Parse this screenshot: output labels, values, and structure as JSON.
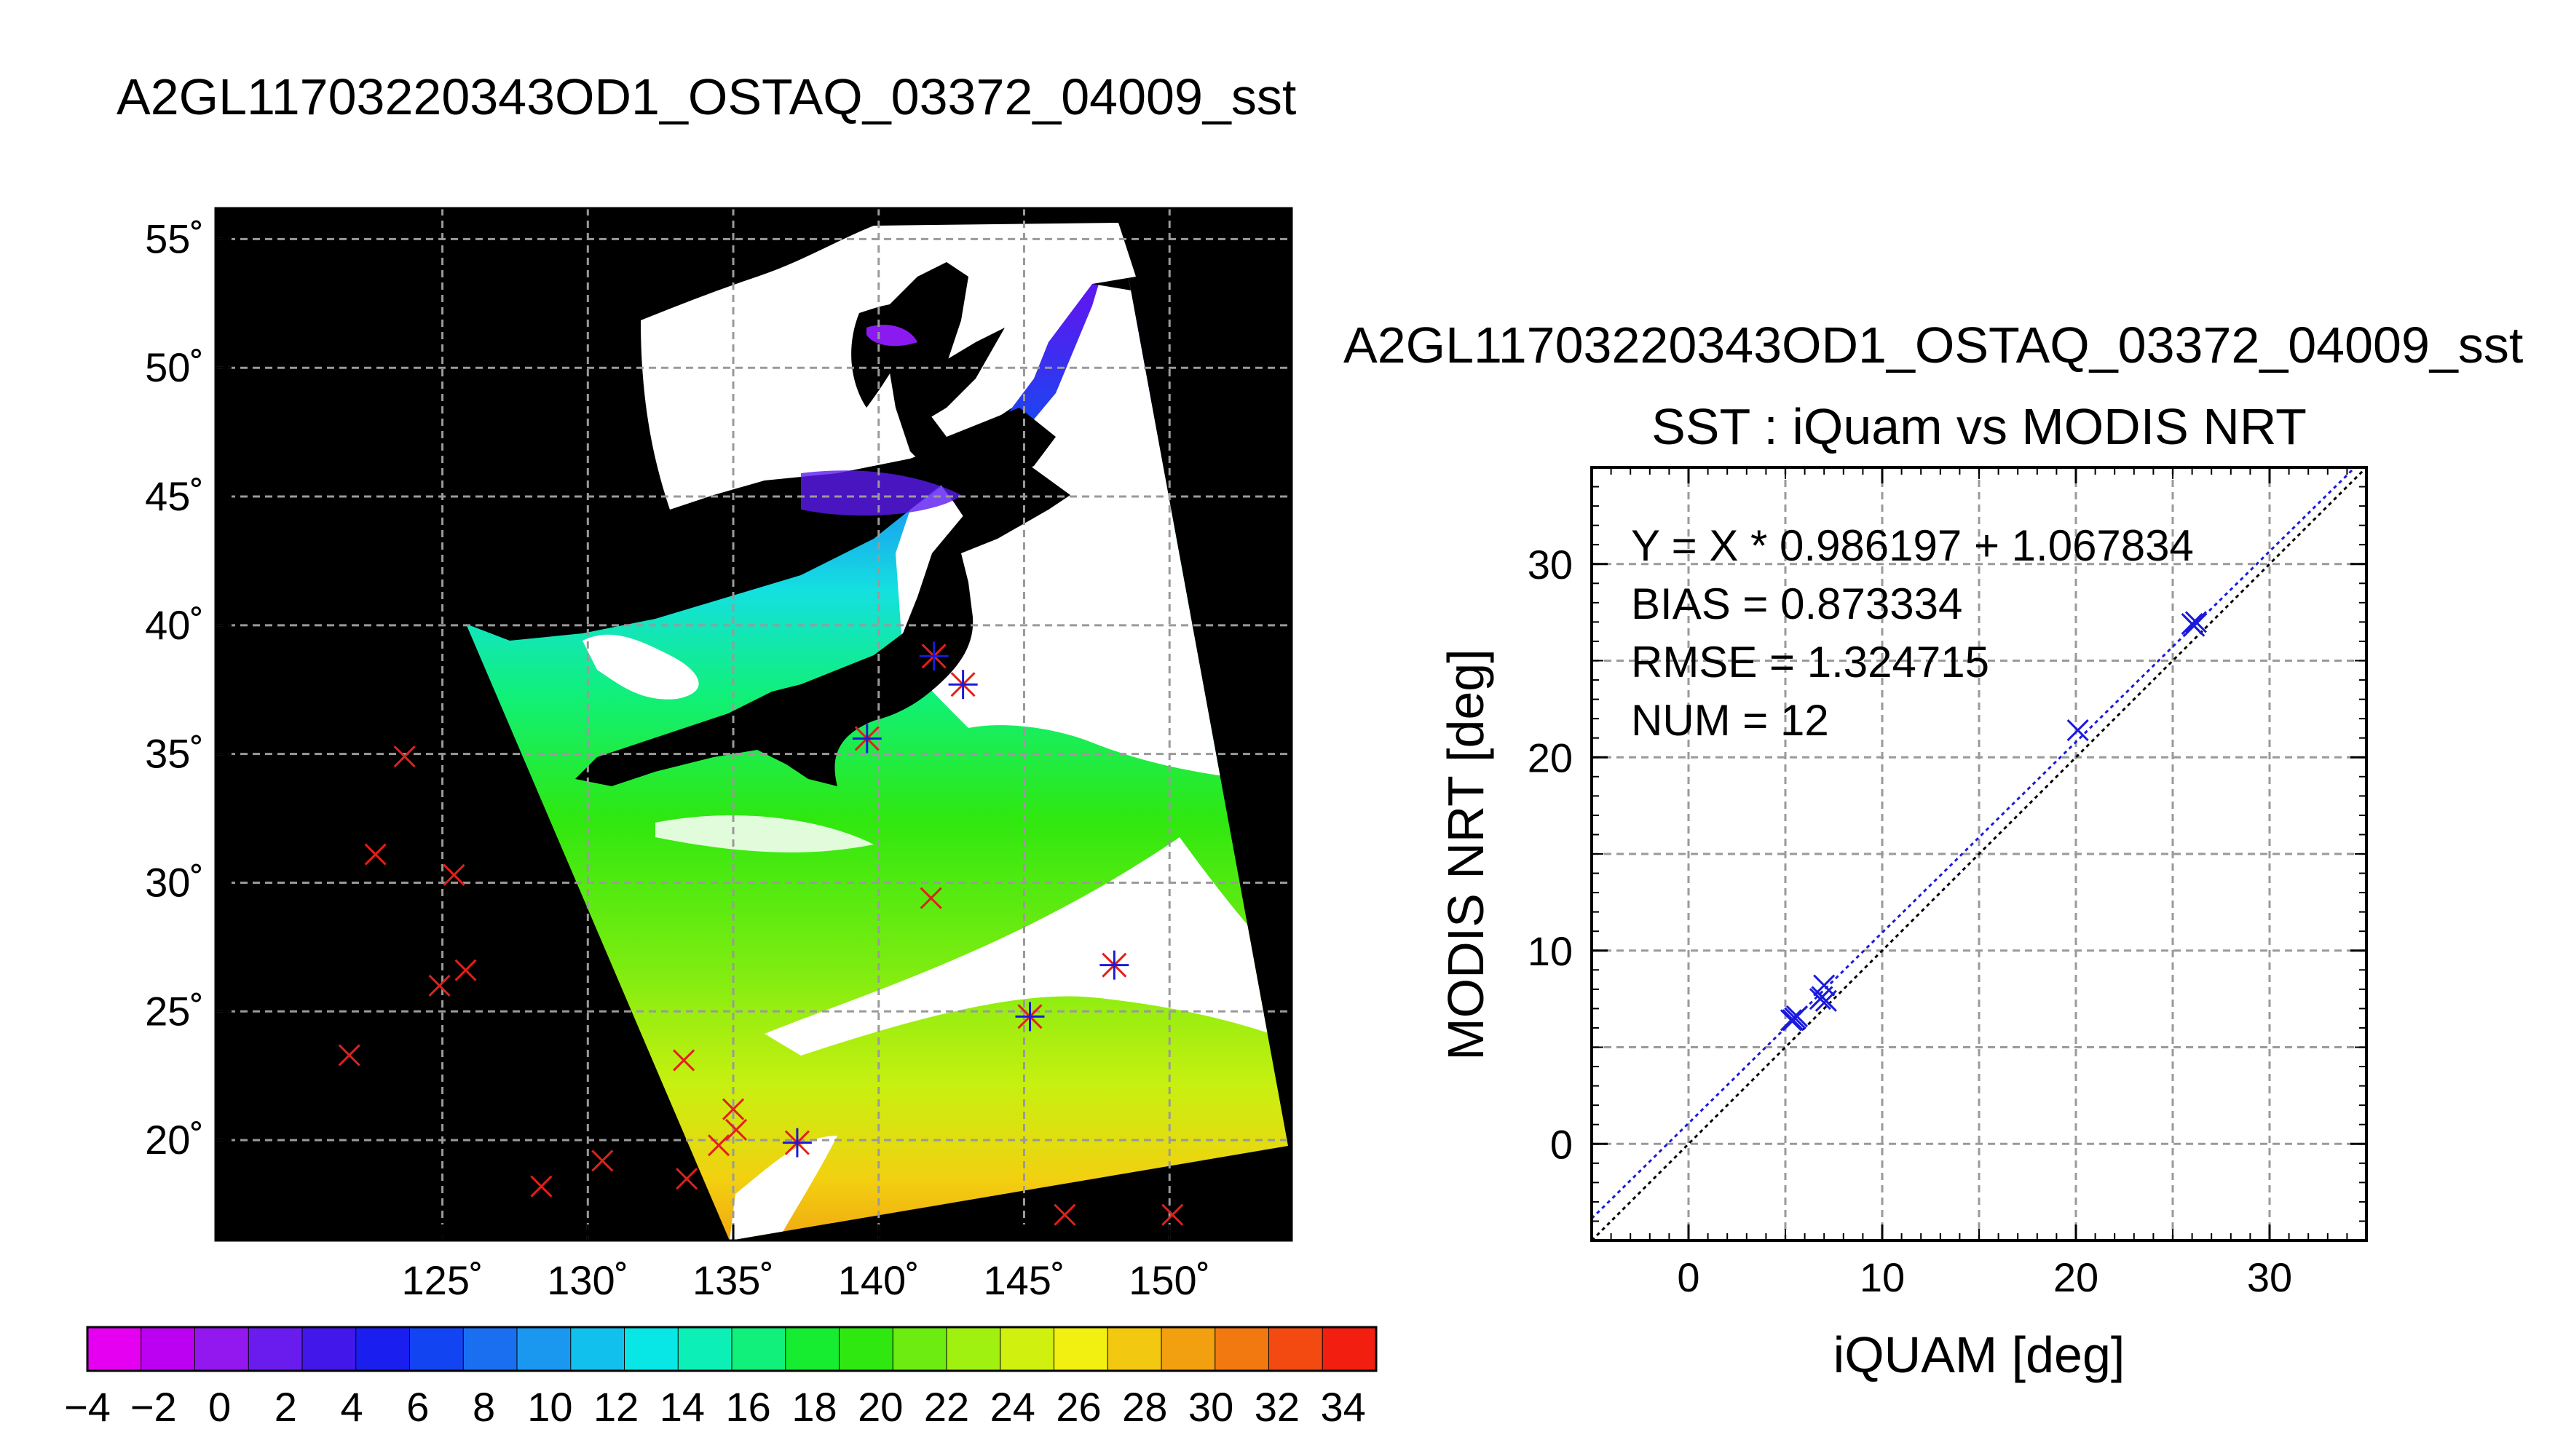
{
  "figure": {
    "map_title": "A2GL11703220343OD1_OSTAQ_03372_04009_sst",
    "scatter_title": "A2GL11703220343OD1_OSTAQ_03372_04009_sst",
    "scatter_subtitle": "SST : iQuam vs MODIS NRT"
  },
  "colors": {
    "marker_red": "#e0201a",
    "marker_blue": "#1a1adc",
    "fit_line": "#1a1adc",
    "map_background": "#000000",
    "cloud": "#ffffff"
  },
  "chart_data": [
    {
      "type": "scatter",
      "kind": "map",
      "title": "A2GL11703220343OD1_OSTAQ_03372_04009_sst",
      "lon_ticks": [
        125,
        130,
        135,
        140,
        145,
        150
      ],
      "lat_ticks": [
        55,
        50,
        45,
        40,
        35,
        30,
        25,
        20
      ],
      "lon_tick_labels": [
        "125˚",
        "130˚",
        "135˚",
        "140˚",
        "145˚",
        "150˚"
      ],
      "lat_tick_labels": [
        "55˚",
        "50˚",
        "45˚",
        "40˚",
        "35˚",
        "30˚",
        "25˚",
        "20˚"
      ],
      "xlim": [
        117.2,
        154.2
      ],
      "ylim": [
        16.1,
        56.2
      ],
      "grid": true,
      "stations_outside_swath": [
        {
          "lon": 123.7,
          "lat": 34.9
        },
        {
          "lon": 122.7,
          "lat": 31.1
        },
        {
          "lon": 125.4,
          "lat": 30.3
        },
        {
          "lon": 125.8,
          "lat": 26.6
        },
        {
          "lon": 124.9,
          "lat": 26.0
        },
        {
          "lon": 121.8,
          "lat": 23.3
        },
        {
          "lon": 133.3,
          "lat": 23.1
        },
        {
          "lon": 135.0,
          "lat": 21.2
        },
        {
          "lon": 135.1,
          "lat": 20.4
        },
        {
          "lon": 134.5,
          "lat": 19.8
        },
        {
          "lon": 130.5,
          "lat": 19.2
        },
        {
          "lon": 133.4,
          "lat": 18.5
        },
        {
          "lon": 128.4,
          "lat": 18.2
        },
        {
          "lon": 146.4,
          "lat": 17.1
        },
        {
          "lon": 150.1,
          "lat": 17.1
        },
        {
          "lon": 141.8,
          "lat": 29.4
        }
      ],
      "stations_in_swath": [
        {
          "lon": 141.9,
          "lat": 38.8
        },
        {
          "lon": 142.9,
          "lat": 37.7
        },
        {
          "lon": 139.6,
          "lat": 35.6
        },
        {
          "lon": 145.2,
          "lat": 24.8
        },
        {
          "lon": 148.1,
          "lat": 26.8
        },
        {
          "lon": 137.2,
          "lat": 19.9
        }
      ]
    },
    {
      "type": "heatmap",
      "kind": "colorbar",
      "tick_labels": [
        "−4",
        "−2",
        "0",
        "2",
        "4",
        "6",
        "8",
        "10",
        "12",
        "14",
        "16",
        "18",
        "20",
        "22",
        "24",
        "26",
        "28",
        "30",
        "32",
        "34"
      ],
      "range": [
        -4,
        35
      ],
      "step": 2,
      "colors": [
        "#e600f2",
        "#bc00f2",
        "#9318f0",
        "#6a1cee",
        "#4117ea",
        "#1a1ff0",
        "#1344f2",
        "#1a6ff0",
        "#1a98f0",
        "#12c0ee",
        "#08e6e6",
        "#0cf0b8",
        "#10f07a",
        "#16ec30",
        "#2ee810",
        "#6cec10",
        "#a0f010",
        "#d0f010",
        "#f2f010",
        "#f2c810",
        "#f2a010",
        "#f27810",
        "#f24a10",
        "#f21e10"
      ]
    },
    {
      "type": "scatter",
      "kind": "validation",
      "title": "SST : iQuam vs MODIS NRT",
      "xlabel": "iQUAM [deg]",
      "ylabel": "MODIS NRT [deg]",
      "xlim": [
        -5,
        35
      ],
      "ylim": [
        -5,
        35
      ],
      "xticks": [
        0,
        10,
        20,
        30
      ],
      "yticks": [
        0,
        10,
        20,
        30
      ],
      "xtick_labels": [
        "0",
        "10",
        "20",
        "30"
      ],
      "ytick_labels": [
        "0",
        "10",
        "20",
        "30"
      ],
      "grid": true,
      "points": [
        {
          "x": 5.4,
          "y": 6.4
        },
        {
          "x": 5.6,
          "y": 6.6
        },
        {
          "x": 5.5,
          "y": 6.5
        },
        {
          "x": 6.8,
          "y": 7.5
        },
        {
          "x": 7.0,
          "y": 8.2
        },
        {
          "x": 7.1,
          "y": 7.4
        },
        {
          "x": 6.9,
          "y": 7.6
        },
        {
          "x": 20.1,
          "y": 21.4
        },
        {
          "x": 26.0,
          "y": 26.9
        },
        {
          "x": 26.2,
          "y": 27.0
        },
        {
          "x": 26.1,
          "y": 26.8
        },
        {
          "x": 5.3,
          "y": 6.4
        }
      ],
      "fit": {
        "slope": 0.986197,
        "intercept": 1.067834
      },
      "identity_line": true,
      "stats": [
        "Y = X * 0.986197 + 1.067834",
        "BIAS = 0.873334",
        "RMSE = 1.324715",
        "NUM = 12"
      ]
    }
  ]
}
